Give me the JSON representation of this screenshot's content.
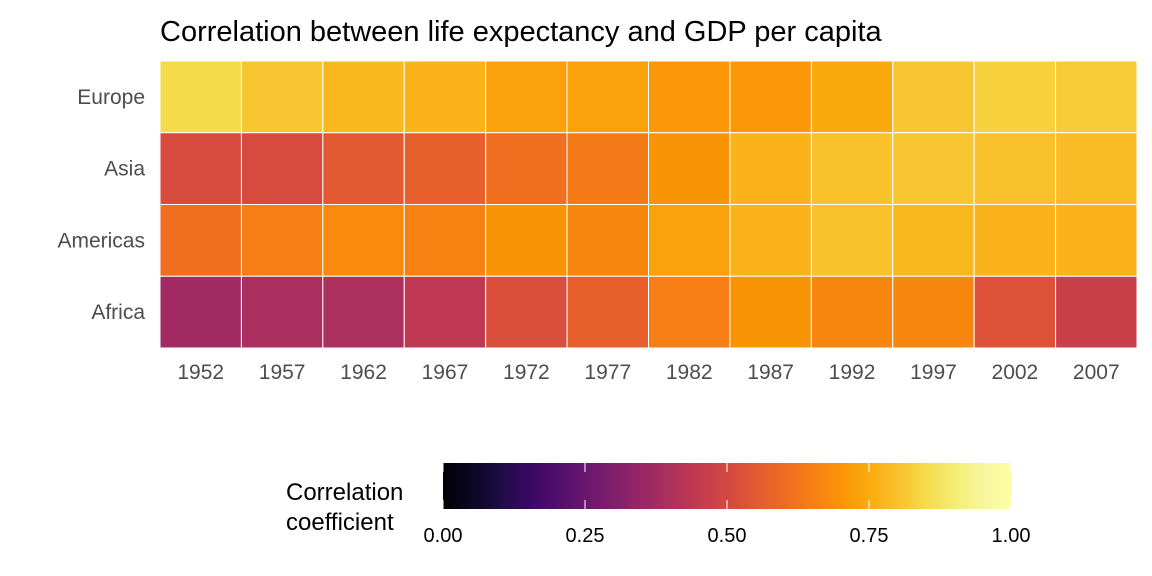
{
  "chart_data": {
    "type": "heatmap",
    "title": "Correlation between life expectancy and GDP per capita",
    "xlabel": "",
    "ylabel": "",
    "x": [
      "1952",
      "1957",
      "1962",
      "1967",
      "1972",
      "1977",
      "1982",
      "1987",
      "1992",
      "1997",
      "2002",
      "2007"
    ],
    "y": [
      "Europe",
      "Asia",
      "Americas",
      "Africa"
    ],
    "values": [
      [
        0.85,
        0.81,
        0.78,
        0.77,
        0.73,
        0.73,
        0.71,
        0.71,
        0.75,
        0.81,
        0.83,
        0.82
      ],
      [
        0.51,
        0.51,
        0.55,
        0.57,
        0.61,
        0.64,
        0.7,
        0.77,
        0.8,
        0.81,
        0.8,
        0.79
      ],
      [
        0.61,
        0.65,
        0.68,
        0.66,
        0.7,
        0.67,
        0.73,
        0.77,
        0.8,
        0.78,
        0.77,
        0.77
      ],
      [
        0.37,
        0.39,
        0.4,
        0.44,
        0.52,
        0.57,
        0.65,
        0.7,
        0.67,
        0.67,
        0.53,
        0.47
      ]
    ],
    "colorscale": "inferno",
    "legend": {
      "title_lines": [
        "Correlation",
        "coefficient"
      ],
      "position": "bottom",
      "range": [
        0,
        1
      ],
      "ticks": [
        "0.00",
        "0.25",
        "0.50",
        "0.75",
        "1.00"
      ],
      "tick_values": [
        0,
        0.25,
        0.5,
        0.75,
        1.0
      ]
    },
    "grid": false
  }
}
